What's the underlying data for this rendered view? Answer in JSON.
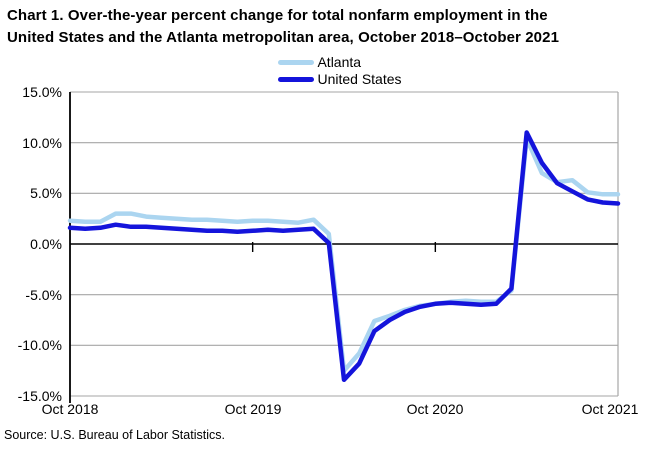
{
  "title": {
    "line1": "Chart 1. Over-the-year percent change for total nonfarm employment in the",
    "line2": "United States and the Atlanta metropolitan area, October 2018–October 2021"
  },
  "source_note": "Source: U.S. Bureau of Labor Statistics.",
  "colors": {
    "atlanta_line": "#ABD5F0",
    "us_line": "#1414DB",
    "gridline": "#A6A6A6",
    "axis": "#000000",
    "text": "#000000",
    "background": "#FFFFFF"
  },
  "chart_data": {
    "type": "line",
    "title": "Chart 1. Over-the-year percent change for total nonfarm employment in the United States and the Atlanta metropolitan area, October 2018–October 2021",
    "xlabel": "",
    "ylabel": "Over-the-year percent change",
    "ylim": [
      -15,
      15
    ],
    "y_step": 5,
    "grid": true,
    "legend_position": "top-center",
    "y_tick_labels": [
      "15.0%",
      "10.0%",
      "5.0%",
      "0.0%",
      "-5.0%",
      "-10.0%",
      "-15.0%"
    ],
    "x_tick_labels": [
      "Oct 2018",
      "Oct 2019",
      "Oct 2020",
      "Oct 2021"
    ],
    "x_tick_indices": [
      0,
      12,
      24,
      36
    ],
    "categories": [
      "Oct 2018",
      "Nov 2018",
      "Dec 2018",
      "Jan 2019",
      "Feb 2019",
      "Mar 2019",
      "Apr 2019",
      "May 2019",
      "Jun 2019",
      "Jul 2019",
      "Aug 2019",
      "Sep 2019",
      "Oct 2019",
      "Nov 2019",
      "Dec 2019",
      "Jan 2020",
      "Feb 2020",
      "Mar 2020",
      "Apr 2020",
      "May 2020",
      "Jun 2020",
      "Jul 2020",
      "Aug 2020",
      "Sep 2020",
      "Oct 2020",
      "Nov 2020",
      "Dec 2020",
      "Jan 2021",
      "Feb 2021",
      "Mar 2021",
      "Apr 2021",
      "May 2021",
      "Jun 2021",
      "Jul 2021",
      "Aug 2021",
      "Sep 2021",
      "Oct 2021"
    ],
    "series": [
      {
        "name": "Atlanta",
        "color": "#ABD5F0",
        "width": 4.5,
        "values": [
          2.3,
          2.2,
          2.2,
          3.0,
          3.0,
          2.7,
          2.6,
          2.5,
          2.4,
          2.4,
          2.3,
          2.2,
          2.3,
          2.3,
          2.2,
          2.1,
          2.4,
          1.0,
          -12.5,
          -10.8,
          -7.6,
          -7.1,
          -6.5,
          -6.1,
          -5.9,
          -5.7,
          -5.6,
          -5.7,
          -5.7,
          -4.6,
          10.4,
          7.0,
          6.1,
          6.3,
          5.1,
          4.9,
          4.9
        ]
      },
      {
        "name": "United States",
        "color": "#1414DB",
        "width": 4.5,
        "values": [
          1.6,
          1.5,
          1.6,
          1.9,
          1.7,
          1.7,
          1.6,
          1.5,
          1.4,
          1.3,
          1.3,
          1.2,
          1.3,
          1.4,
          1.3,
          1.4,
          1.5,
          0.1,
          -13.4,
          -11.8,
          -8.6,
          -7.5,
          -6.7,
          -6.2,
          -5.9,
          -5.8,
          -5.9,
          -6.0,
          -5.9,
          -4.4,
          11.0,
          8.0,
          6.0,
          5.2,
          4.4,
          4.1,
          4.0
        ]
      }
    ]
  }
}
